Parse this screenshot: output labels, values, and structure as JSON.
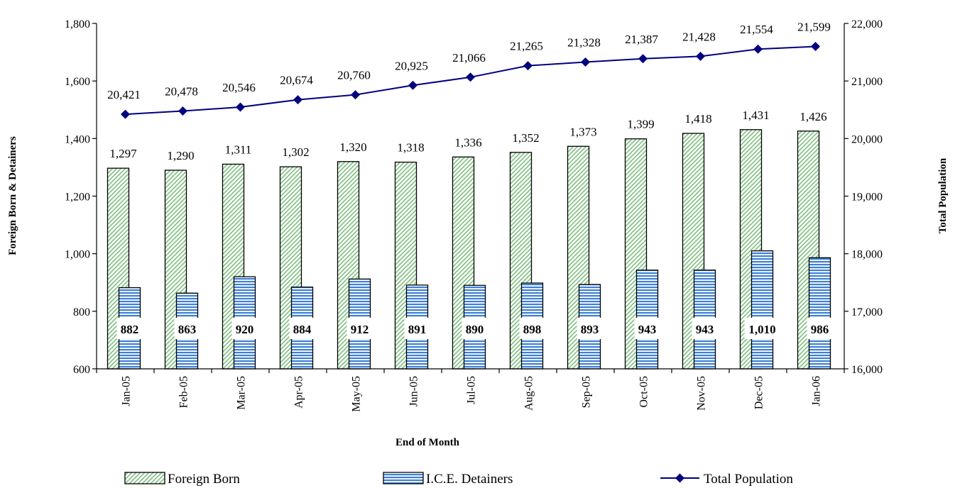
{
  "chart_data": {
    "type": "bar",
    "categories": [
      "Jan-05",
      "Feb-05",
      "Mar-05",
      "Apr-05",
      "May-05",
      "Jun-05",
      "Jul-05",
      "Aug-05",
      "Sep-05",
      "Oct-05",
      "Nov-05",
      "Dec-05",
      "Jan-06"
    ],
    "series": [
      {
        "name": "Foreign Born",
        "type": "bar",
        "axis": "left",
        "values": [
          1297,
          1290,
          1311,
          1302,
          1320,
          1318,
          1336,
          1352,
          1373,
          1399,
          1418,
          1431,
          1426
        ],
        "labels": [
          "1,297",
          "1,290",
          "1,311",
          "1,302",
          "1,320",
          "1,318",
          "1,336",
          "1,352",
          "1,373",
          "1,399",
          "1,418",
          "1,431",
          "1,426"
        ],
        "color": "#9fcf9f"
      },
      {
        "name": "I.C.E. Detainers",
        "type": "bar",
        "axis": "left",
        "values": [
          882,
          863,
          920,
          884,
          912,
          891,
          890,
          898,
          893,
          943,
          943,
          1010,
          986
        ],
        "labels": [
          "882",
          "863",
          "920",
          "884",
          "912",
          "891",
          "890",
          "898",
          "893",
          "943",
          "943",
          "1,010",
          "986"
        ],
        "color": "#4a86d8"
      },
      {
        "name": "Total Population",
        "type": "line",
        "axis": "right",
        "values": [
          20421,
          20478,
          20546,
          20674,
          20760,
          20925,
          21066,
          21265,
          21328,
          21387,
          21428,
          21554,
          21599
        ],
        "labels": [
          "20,421",
          "20,478",
          "20,546",
          "20,674",
          "20,760",
          "20,925",
          "21,066",
          "21,265",
          "21,328",
          "21,387",
          "21,428",
          "21,554",
          "21,599"
        ],
        "color": "#000080"
      }
    ],
    "title": "",
    "xlabel": "End of Month",
    "ylabel": "Foreign Born & Detainers",
    "y2label": "Total Population",
    "ylim": [
      600,
      1800
    ],
    "yticks": [
      "600",
      "800",
      "1,000",
      "1,200",
      "1,400",
      "1,600",
      "1,800"
    ],
    "y2lim": [
      16000,
      22000
    ],
    "y2ticks": [
      "16,000",
      "17,000",
      "18,000",
      "19,000",
      "20,000",
      "21,000",
      "22,000"
    ],
    "grid": false,
    "legend": "bottom"
  }
}
